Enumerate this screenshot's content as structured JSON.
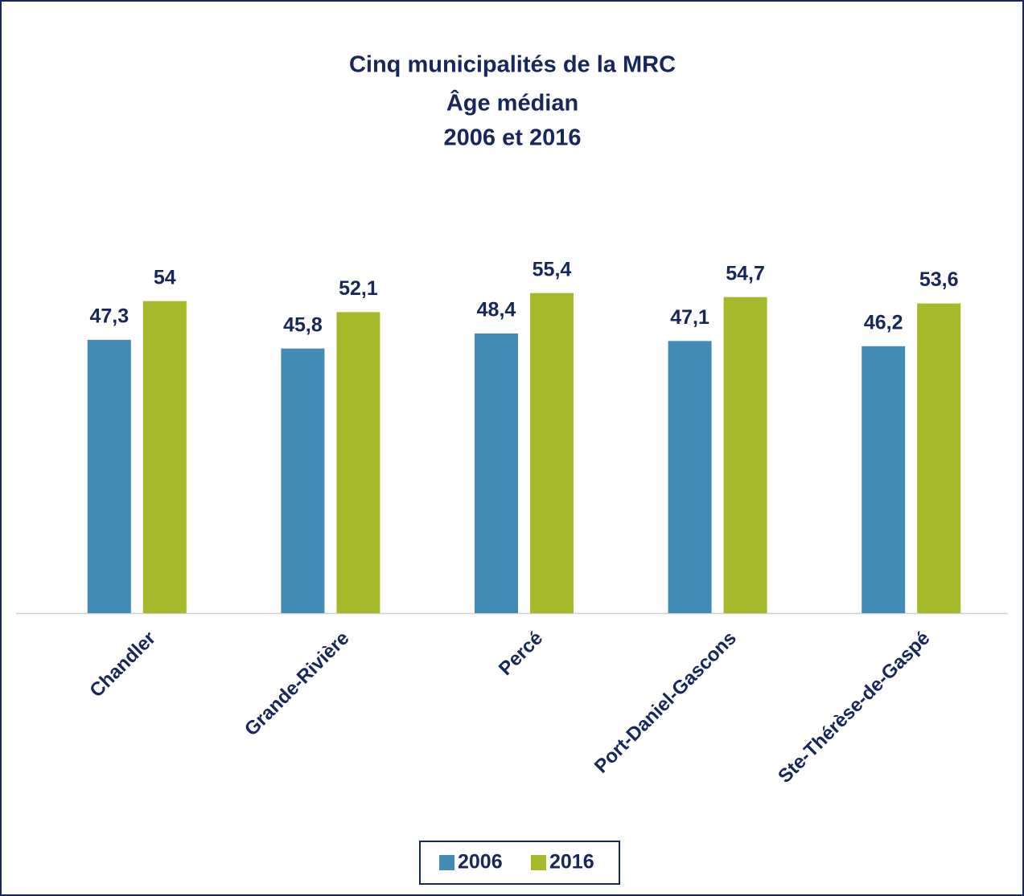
{
  "chart_data": {
    "type": "bar",
    "title": [
      "Cinq municipalités de la MRC",
      "Âge médian",
      "2006 et 2016"
    ],
    "categories": [
      "Chandler",
      "Grande-Rivière",
      "Percé",
      "Port-Daniel-Gascons",
      "Ste-Thérèse-de-Gaspé"
    ],
    "series": [
      {
        "name": "2006",
        "color": "#428bb5",
        "values": [
          47.3,
          45.8,
          48.4,
          47.1,
          46.2
        ],
        "value_labels": [
          "47,3",
          "45,8",
          "48,4",
          "47,1",
          "46,2"
        ]
      },
      {
        "name": "2016",
        "color": "#a5b92a",
        "values": [
          54,
          52.1,
          55.4,
          54.7,
          53.6
        ],
        "value_labels": [
          "54",
          "52,1",
          "55,4",
          "54,7",
          "53,6"
        ]
      }
    ],
    "ylim": [
      0,
      60
    ],
    "legend": "bottom"
  }
}
